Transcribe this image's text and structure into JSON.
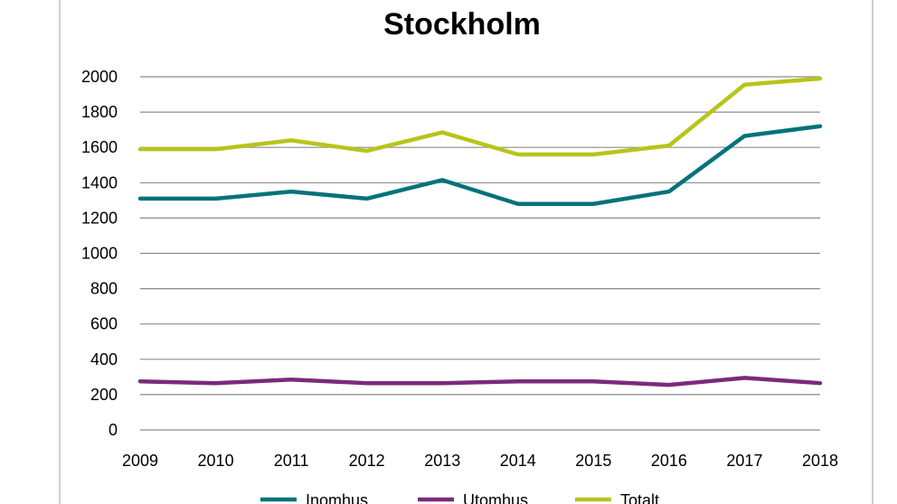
{
  "chart_data": {
    "type": "line",
    "title": "Stockholm",
    "xlabel": "",
    "ylabel": "",
    "categories": [
      "2009",
      "2010",
      "2011",
      "2012",
      "2013",
      "2014",
      "2015",
      "2016",
      "2017",
      "2018"
    ],
    "ylim": [
      0,
      2000
    ],
    "yticks": [
      "0",
      "200",
      "400",
      "600",
      "800",
      "1000",
      "1200",
      "1400",
      "1600",
      "1800",
      "2000"
    ],
    "grid": "horizontal",
    "legend_position": "bottom",
    "series": [
      {
        "name": "Inomhus",
        "color": "#00737a",
        "values": [
          1310,
          1310,
          1350,
          1310,
          1415,
          1280,
          1280,
          1350,
          1665,
          1720
        ]
      },
      {
        "name": "Utomhus",
        "color": "#7b2a7c",
        "values": [
          275,
          265,
          285,
          265,
          265,
          275,
          275,
          255,
          295,
          265
        ]
      },
      {
        "name": "Totalt",
        "color": "#b8c41a",
        "values": [
          1590,
          1590,
          1640,
          1580,
          1685,
          1560,
          1560,
          1610,
          1955,
          1990
        ]
      }
    ]
  }
}
